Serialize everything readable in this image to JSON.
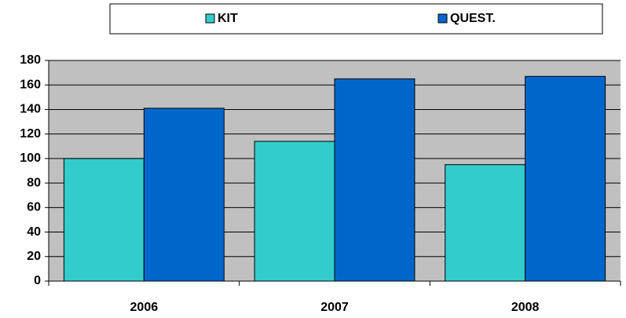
{
  "chart_data": {
    "type": "bar",
    "categories": [
      "2006",
      "2007",
      "2008"
    ],
    "series": [
      {
        "name": "KIT",
        "color": "#33cccc",
        "values": [
          100,
          114,
          95
        ]
      },
      {
        "name": "QUEST.",
        "color": "#0066cc",
        "values": [
          141,
          165,
          167
        ]
      }
    ],
    "ylim": [
      0,
      180
    ],
    "yticks": [
      0,
      20,
      40,
      60,
      80,
      100,
      120,
      140,
      160,
      180
    ],
    "grid": true,
    "legend": "top"
  }
}
